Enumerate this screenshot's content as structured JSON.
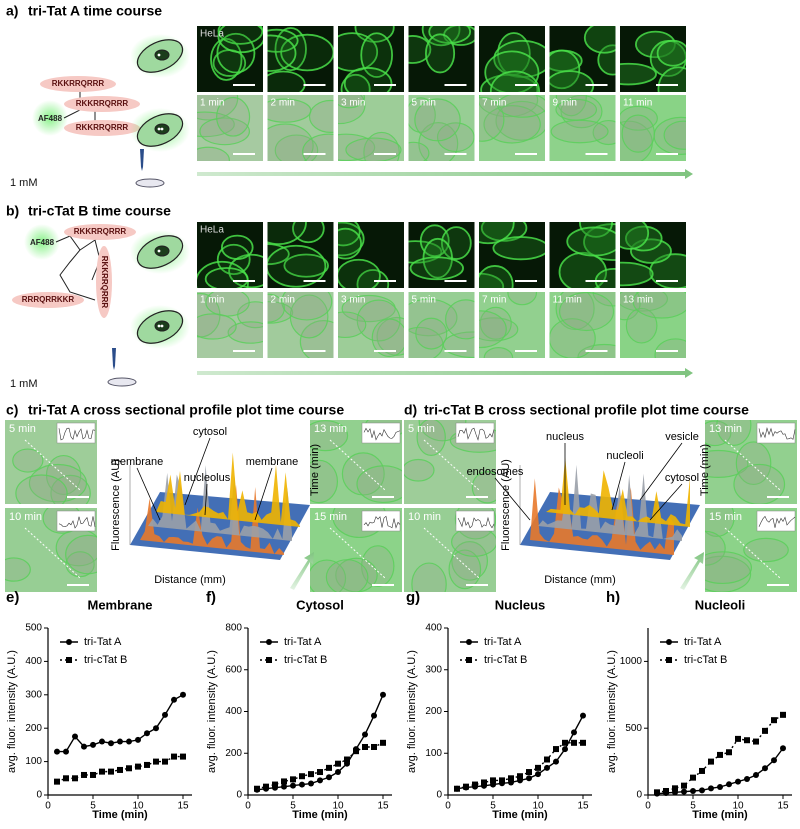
{
  "panels": {
    "a": {
      "label": "a)",
      "title": "tri-Tat A time course",
      "peptides": [
        "RKKRRQRRR",
        "RKKRRQRRR",
        "RKKRRQRRR"
      ],
      "dye": "AF488",
      "concentration": "1 mM",
      "cell_line": "HeLa",
      "times": [
        "1 min",
        "2 min",
        "3 min",
        "5 min",
        "7 min",
        "9 min",
        "11 min"
      ]
    },
    "b": {
      "label": "b)",
      "title": "tri-cTat B time course",
      "peptides": [
        "RKKRRQRRR",
        "RKKRRQRRR",
        "RRRQRRKKR"
      ],
      "dye": "AF488",
      "concentration": "1 mM",
      "cell_line": "HeLa",
      "times": [
        "1 min",
        "2 min",
        "3 min",
        "5 min",
        "7 min",
        "11 min",
        "13 min"
      ]
    },
    "c": {
      "label": "c)",
      "title": "tri-Tat A cross sectional profile plot time course",
      "times": [
        "5 min",
        "10 min",
        "13 min",
        "15 min"
      ],
      "annotations": [
        "membrane",
        "cytosol",
        "nucleolus",
        "membrane"
      ],
      "z_label": "Fluorescence (AU)",
      "x_label": "Distance (mm)",
      "y_label": "Time (min)"
    },
    "d": {
      "label": "d)",
      "title": "tri-cTat B cross sectional profile plot time course",
      "times": [
        "5 min",
        "10 min",
        "13 min",
        "15 min"
      ],
      "annotations": [
        "endosomes",
        "nucleus",
        "nucleoli",
        "vesicle",
        "cytosol"
      ],
      "z_label": "Fluorescence (AU)",
      "x_label": "Distance (mm)",
      "y_label": "Time (min)"
    }
  },
  "chart_data": [
    {
      "type": "line",
      "panel_label": "e)",
      "title": "Membrane",
      "x_label": "Time (min)",
      "y_label": "avg. fluor. intensity (A.U.)",
      "legend": "upper left",
      "x": [
        1,
        2,
        3,
        4,
        5,
        6,
        7,
        8,
        9,
        10,
        11,
        12,
        13,
        14,
        15
      ],
      "xlim": [
        0,
        16
      ],
      "xticks": [
        0,
        5,
        10,
        15
      ],
      "ylim": [
        0,
        500
      ],
      "yticks": [
        0,
        100,
        200,
        300,
        400,
        500
      ],
      "series": [
        {
          "name": "tri-Tat A",
          "color": "#000000",
          "marker": "circle",
          "dashed": false,
          "values": [
            130,
            130,
            175,
            145,
            150,
            160,
            155,
            160,
            160,
            165,
            185,
            200,
            240,
            285,
            300
          ]
        },
        {
          "name": "tri-cTat B",
          "color": "#000000",
          "marker": "square",
          "dashed": true,
          "values": [
            40,
            50,
            50,
            60,
            60,
            70,
            70,
            75,
            80,
            85,
            90,
            100,
            100,
            115,
            115
          ]
        }
      ]
    },
    {
      "type": "line",
      "panel_label": "f)",
      "title": "Cytosol",
      "x_label": "Time (min)",
      "y_label": "avg. fluor. intensity (A.U.)",
      "legend": "upper left",
      "x": [
        1,
        2,
        3,
        4,
        5,
        6,
        7,
        8,
        9,
        10,
        11,
        12,
        13,
        14,
        15
      ],
      "xlim": [
        0,
        16
      ],
      "xticks": [
        0,
        5,
        10,
        15
      ],
      "ylim": [
        0,
        800
      ],
      "yticks": [
        0,
        200,
        400,
        600,
        800
      ],
      "series": [
        {
          "name": "tri-Tat A",
          "color": "#000000",
          "marker": "circle",
          "dashed": false,
          "values": [
            25,
            30,
            35,
            40,
            45,
            50,
            55,
            70,
            85,
            110,
            150,
            220,
            290,
            380,
            480
          ]
        },
        {
          "name": "tri-cTat B",
          "color": "#000000",
          "marker": "square",
          "dashed": true,
          "values": [
            30,
            40,
            50,
            65,
            75,
            90,
            100,
            110,
            130,
            150,
            170,
            210,
            230,
            230,
            250
          ]
        }
      ]
    },
    {
      "type": "line",
      "panel_label": "g)",
      "title": "Nucleus",
      "x_label": "Time (min)",
      "y_label": "avg. fluor. intensity (A.U.)",
      "legend": "upper left",
      "x": [
        1,
        2,
        3,
        4,
        5,
        6,
        7,
        8,
        9,
        10,
        11,
        12,
        13,
        14,
        15
      ],
      "xlim": [
        0,
        16
      ],
      "xticks": [
        0,
        5,
        10,
        15
      ],
      "ylim": [
        0,
        400
      ],
      "yticks": [
        0,
        100,
        200,
        300,
        400
      ],
      "series": [
        {
          "name": "tri-Tat A",
          "color": "#000000",
          "marker": "circle",
          "dashed": false,
          "values": [
            15,
            18,
            20,
            22,
            25,
            28,
            30,
            35,
            40,
            50,
            65,
            80,
            110,
            150,
            190
          ]
        },
        {
          "name": "tri-cTat B",
          "color": "#000000",
          "marker": "square",
          "dashed": true,
          "values": [
            15,
            20,
            25,
            30,
            35,
            35,
            40,
            45,
            55,
            65,
            85,
            110,
            125,
            125,
            125
          ]
        }
      ]
    },
    {
      "type": "line",
      "panel_label": "h)",
      "title": "Nucleoli",
      "x_label": "Time (min)",
      "y_label": "avg. fluor. intensity (A.U.)",
      "legend": "upper left",
      "x": [
        1,
        2,
        3,
        4,
        5,
        6,
        7,
        8,
        9,
        10,
        11,
        12,
        13,
        14,
        15
      ],
      "xlim": [
        0,
        16
      ],
      "xticks": [
        0,
        5,
        10,
        15
      ],
      "ylim": [
        0,
        1250
      ],
      "yticks": [
        0,
        500,
        1000
      ],
      "series": [
        {
          "name": "tri-Tat A",
          "color": "#000000",
          "marker": "circle",
          "dashed": false,
          "values": [
            10,
            15,
            20,
            25,
            30,
            35,
            50,
            60,
            80,
            100,
            120,
            150,
            200,
            260,
            350
          ]
        },
        {
          "name": "tri-cTat B",
          "color": "#000000",
          "marker": "square",
          "dashed": true,
          "values": [
            20,
            30,
            50,
            70,
            130,
            180,
            250,
            300,
            320,
            420,
            410,
            400,
            480,
            560,
            600
          ]
        }
      ]
    }
  ]
}
